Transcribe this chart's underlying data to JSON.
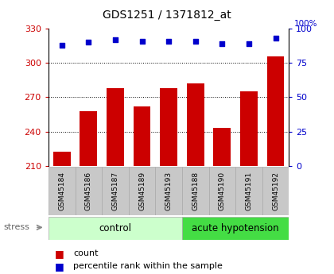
{
  "title": "GDS1251 / 1371812_at",
  "samples": [
    "GSM45184",
    "GSM45186",
    "GSM45187",
    "GSM45189",
    "GSM45193",
    "GSM45188",
    "GSM45190",
    "GSM45191",
    "GSM45192"
  ],
  "counts": [
    222,
    258,
    278,
    262,
    278,
    282,
    243,
    275,
    306
  ],
  "percentile_ranks": [
    88,
    90,
    92,
    91,
    91,
    91,
    89,
    89,
    93
  ],
  "bar_color": "#cc0000",
  "dot_color": "#0000cc",
  "ylim_left": [
    210,
    330
  ],
  "ylim_right": [
    0,
    100
  ],
  "yticks_left": [
    210,
    240,
    270,
    300,
    330
  ],
  "yticks_right": [
    0,
    25,
    50,
    75,
    100
  ],
  "xticklabel_bg": "#c8c8c8",
  "control_bg": "#ccffcc",
  "acute_bg": "#44dd44",
  "control_label": "control",
  "acute_label": "acute hypotension",
  "stress_label": "stress",
  "control_count": 5,
  "acute_count": 4,
  "legend_count": "count",
  "legend_percentile": "percentile rank within the sample",
  "grid_yticks": [
    240,
    270,
    300
  ]
}
